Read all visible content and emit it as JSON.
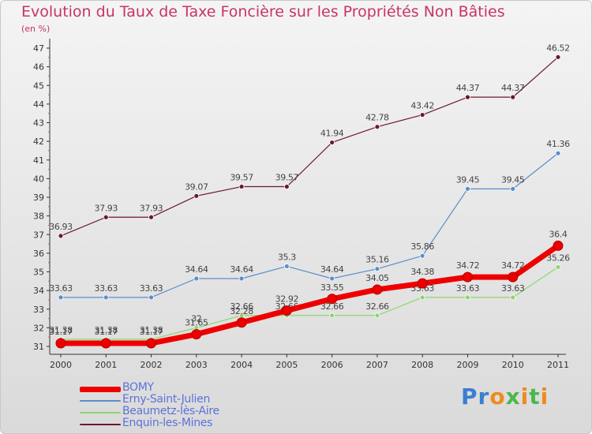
{
  "chart_data": {
    "type": "line",
    "title": "Evolution du Taux de Taxe Foncière sur les Propriétés Non Bâties",
    "unit_label": "(en %)",
    "x": [
      "2000",
      "2001",
      "2002",
      "2003",
      "2004",
      "2005",
      "2006",
      "2007",
      "2008",
      "2009",
      "2010",
      "2011"
    ],
    "ylim": [
      31,
      47
    ],
    "yticks": [
      "31",
      "32",
      "33",
      "34",
      "35",
      "36",
      "37",
      "38",
      "39",
      "40",
      "41",
      "42",
      "43",
      "44",
      "45",
      "46",
      "47"
    ],
    "grid": false,
    "legend_position": "bottom-left",
    "series": [
      {
        "name": "Enquin-les-Mines",
        "color": "#6b1a2a",
        "values": [
          36.93,
          37.93,
          37.93,
          39.07,
          39.57,
          39.57,
          41.94,
          42.78,
          43.42,
          44.37,
          44.37,
          46.52
        ],
        "labels": [
          "36.93",
          "37.93",
          "37.93",
          "39.07",
          "39.57",
          "39.57",
          "41.94",
          "42.78",
          "43.42",
          "44.37",
          "44.37",
          "46.52"
        ]
      },
      {
        "name": "Erny-Saint-Julien",
        "color": "#5a8ec9",
        "values": [
          33.63,
          33.63,
          33.63,
          34.64,
          34.64,
          35.3,
          34.64,
          35.16,
          35.86,
          39.45,
          39.45,
          41.36
        ],
        "labels": [
          "33.63",
          "33.63",
          "33.63",
          "34.64",
          "34.64",
          "35.3",
          "34.64",
          "35.16",
          "35.86",
          "39.45",
          "39.45",
          "41.36"
        ]
      },
      {
        "name": "Beaumetz-lès-Aire",
        "color": "#8ed66a",
        "values": [
          31.38,
          31.38,
          31.38,
          32,
          32.66,
          32.66,
          32.66,
          32.66,
          33.63,
          33.63,
          33.63,
          35.26
        ],
        "labels": [
          "31.38",
          "31.38",
          "31.38",
          "32",
          "32.66",
          "32.66",
          "32.66",
          "32.66",
          "33.63",
          "33.63",
          "33.63",
          "35.26"
        ]
      },
      {
        "name": "BOMY",
        "color": "#ee0000",
        "values": [
          31.17,
          31.17,
          31.17,
          31.65,
          32.28,
          32.92,
          33.55,
          34.05,
          34.38,
          34.72,
          34.72,
          36.4
        ],
        "labels": [
          "31.17",
          "31.17",
          "31.17",
          "31.65",
          "32.28",
          "32.92",
          "33.55",
          "34.05",
          "34.38",
          "34.72",
          "34.72",
          "36.4"
        ]
      }
    ],
    "legend": [
      {
        "name": "BOMY",
        "color": "#ee0000"
      },
      {
        "name": "Erny-Saint-Julien",
        "color": "#5a8ec9"
      },
      {
        "name": "Beaumetz-lès-Aire",
        "color": "#8ed66a"
      },
      {
        "name": "Enquin-les-Mines",
        "color": "#6b1a2a"
      }
    ]
  },
  "brand": {
    "letters": [
      "P",
      "r",
      "o",
      "x",
      "i",
      "t",
      "i"
    ],
    "colors": [
      "#3a7fd0",
      "#3a7fd0",
      "#f08a1c",
      "#4bb84b",
      "#f08a1c",
      "#4bb84b",
      "#f08a1c"
    ]
  }
}
